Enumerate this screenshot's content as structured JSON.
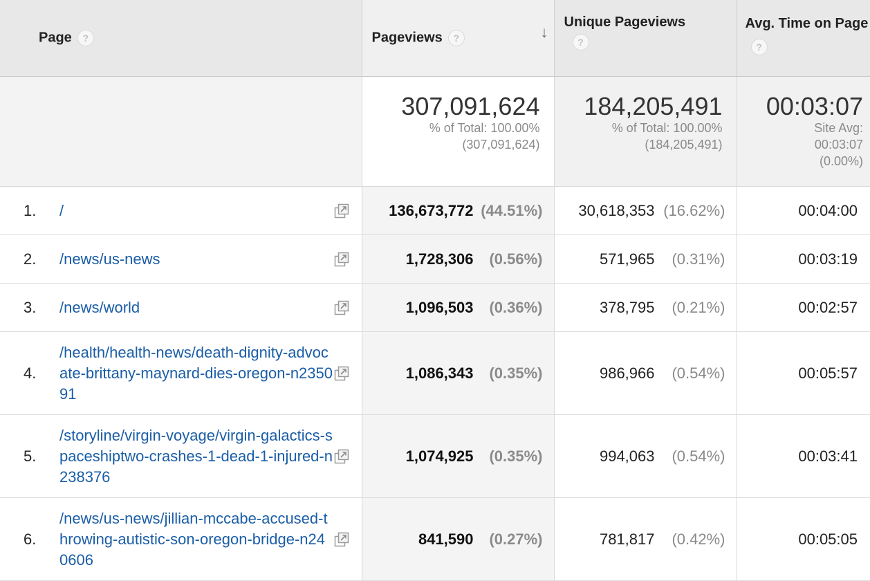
{
  "headers": {
    "page": "Page",
    "pageviews": "Pageviews",
    "unique_pageviews": "Unique Pageviews",
    "avg_time": "Avg. Time on Page",
    "help_glyph": "?",
    "sort_glyph": "↓"
  },
  "totals": {
    "pageviews": {
      "value": "307,091,624",
      "line1": "% of Total: 100.00%",
      "line2": "(307,091,624)"
    },
    "unique_pageviews": {
      "value": "184,205,491",
      "line1": "% of Total: 100.00%",
      "line2": "(184,205,491)"
    },
    "avg_time": {
      "value": "00:03:07",
      "line1": "Site Avg:",
      "line2": "00:03:07",
      "line3": "(0.00%)"
    }
  },
  "rows": [
    {
      "num": "1.",
      "page": "/",
      "pageviews": "136,673,772",
      "pv_pct": "(44.51%)",
      "unique": "30,618,353",
      "u_pct": "(16.62%)",
      "time": "00:04:00"
    },
    {
      "num": "2.",
      "page": "/news/us-news",
      "pageviews": "1,728,306",
      "pv_pct": "(0.56%)",
      "unique": "571,965",
      "u_pct": "(0.31%)",
      "time": "00:03:19"
    },
    {
      "num": "3.",
      "page": "/news/world",
      "pageviews": "1,096,503",
      "pv_pct": "(0.36%)",
      "unique": "378,795",
      "u_pct": "(0.21%)",
      "time": "00:02:57"
    },
    {
      "num": "4.",
      "page": "/health/health-news/death-dignity-advocate-brittany-maynard-dies-oregon-n235091",
      "pageviews": "1,086,343",
      "pv_pct": "(0.35%)",
      "unique": "986,966",
      "u_pct": "(0.54%)",
      "time": "00:05:57"
    },
    {
      "num": "5.",
      "page": "/storyline/virgin-voyage/virgin-galactics-spaceshiptwo-crashes-1-dead-1-injured-n238376",
      "pageviews": "1,074,925",
      "pv_pct": "(0.35%)",
      "unique": "994,063",
      "u_pct": "(0.54%)",
      "time": "00:03:41"
    },
    {
      "num": "6.",
      "page": "/news/us-news/jillian-mccabe-accused-throwing-autistic-son-oregon-bridge-n240606",
      "pageviews": "841,590",
      "pv_pct": "(0.27%)",
      "unique": "781,817",
      "u_pct": "(0.42%)",
      "time": "00:05:05"
    }
  ],
  "icons": {
    "row_action": "open-in-new-window-icon",
    "help": "help-icon",
    "sort": "sort-descending-icon"
  }
}
